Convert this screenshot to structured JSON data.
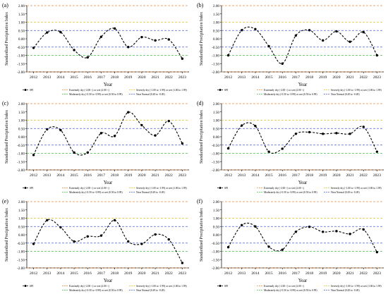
{
  "figure": {
    "shared": {
      "xlabel": "Year",
      "ylabel": "Standardized Precipitation Index",
      "x": [
        2012,
        2013,
        2014,
        2015,
        2016,
        2017,
        2018,
        2019,
        2020,
        2021,
        2022,
        2023
      ],
      "y_ticks": [
        "2.00",
        "1.50",
        "1.00",
        "0.50",
        "0.00",
        "-0.50",
        "-1.00",
        "-1.50",
        "-2.00"
      ],
      "ylim": [
        -2.0,
        2.0
      ],
      "thresholds": [
        {
          "value": 2.0,
          "color": "#e98a3c"
        },
        {
          "value": -2.0,
          "color": "#e98a3c"
        },
        {
          "value": 1.0,
          "color": "#d9c430"
        },
        {
          "value": -1.0,
          "color": "#45bf4a"
        },
        {
          "value": 0.5,
          "color": "#4a5fd0"
        },
        {
          "value": -0.5,
          "color": "#4a5fd0"
        }
      ],
      "legend": [
        {
          "label": "SPI",
          "color": "#000000",
          "kind": "marker"
        },
        {
          "label": "Extremely dry (-2.00 <) or wet (2.00 <)",
          "color": "#e98a3c",
          "kind": "dash"
        },
        {
          "label": "Severely dry (-1.00 to -1.99) or wet (1.00 to 1.99)",
          "color": "#d9c430",
          "kind": "dash"
        },
        {
          "label": "Moderately dry (-0.50 to -0.99) or wet (0.50 to 0.99)",
          "color": "#45bf4a",
          "kind": "dash"
        },
        {
          "label": "Near Normal (0.49 to -0.49)",
          "color": "#4a5fd0",
          "kind": "dash"
        }
      ]
    }
  },
  "chart_data": [
    {
      "type": "line",
      "panel": "(a)",
      "series": [
        {
          "name": "SPI",
          "values": [
            -0.55,
            0.38,
            0.4,
            -0.68,
            -1.12,
            0.12,
            0.62,
            -0.5,
            0.1,
            -0.1,
            -0.04,
            -1.2
          ]
        }
      ]
    },
    {
      "type": "line",
      "panel": "(b)",
      "series": [
        {
          "name": "SPI",
          "values": [
            -1.0,
            0.52,
            0.58,
            -0.45,
            -1.5,
            0.2,
            0.52,
            -0.1,
            0.45,
            -0.18,
            0.4,
            -1.0
          ]
        }
      ]
    },
    {
      "type": "line",
      "panel": "(c)",
      "series": [
        {
          "name": "SPI",
          "values": [
            -1.1,
            0.45,
            0.4,
            -0.95,
            -0.95,
            0.22,
            0.05,
            1.48,
            0.7,
            0.08,
            0.95,
            -0.4
          ]
        }
      ]
    },
    {
      "type": "line",
      "panel": "(d)",
      "series": [
        {
          "name": "SPI",
          "values": [
            -0.7,
            0.68,
            0.65,
            -0.9,
            -0.72,
            0.18,
            0.28,
            0.18,
            0.22,
            0.18,
            0.6,
            -0.9
          ]
        }
      ]
    },
    {
      "type": "line",
      "panel": "(e)",
      "series": [
        {
          "name": "SPI",
          "values": [
            -0.55,
            0.88,
            0.45,
            -0.4,
            -0.1,
            -0.05,
            0.88,
            -0.4,
            -0.55,
            0.02,
            -0.28,
            -1.7
          ]
        }
      ]
    },
    {
      "type": "line",
      "panel": "(f)",
      "series": [
        {
          "name": "SPI",
          "values": [
            -0.75,
            0.58,
            0.5,
            -0.72,
            -0.9,
            0.18,
            0.48,
            0.18,
            0.22,
            0.05,
            0.32,
            -1.05
          ]
        }
      ]
    }
  ]
}
